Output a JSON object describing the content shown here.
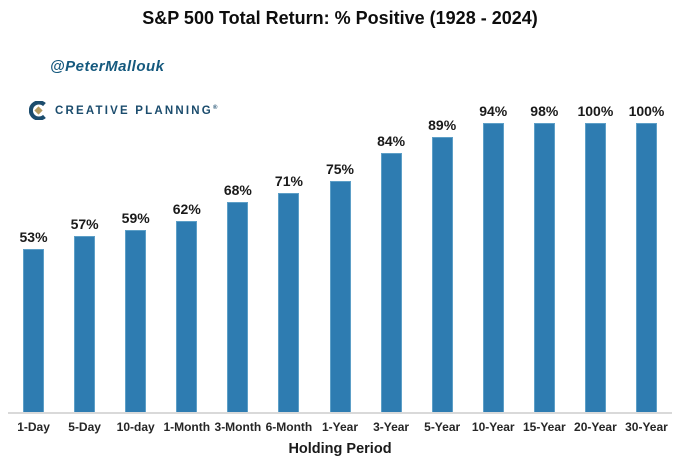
{
  "title": "S&P 500 Total Return: % Positive (1928 - 2024)",
  "attribution": "@PeterMallouk",
  "logo": {
    "text": "CREATIVE PLANNING",
    "trademark": "®",
    "mark_letter": "C",
    "mark_navy": "#1b4c6d",
    "mark_gold": "#b49a5e"
  },
  "chart_data": {
    "type": "bar",
    "title": "S&P 500 Total Return: % Positive (1928 - 2024)",
    "categories": [
      "1-Day",
      "5-Day",
      "10-day",
      "1-Month",
      "3-Month",
      "6-Month",
      "1-Year",
      "3-Year",
      "5-Year",
      "10-Year",
      "15-Year",
      "20-Year",
      "30-Year"
    ],
    "values": [
      53,
      57,
      59,
      62,
      68,
      71,
      75,
      84,
      89,
      94,
      98,
      100,
      100
    ],
    "labels": [
      "53%",
      "57%",
      "59%",
      "62%",
      "68%",
      "71%",
      "75%",
      "84%",
      "89%",
      "94%",
      "98%",
      "100%",
      "100%"
    ],
    "xlabel": "Holding Period",
    "ylabel": "",
    "ylim": [
      0,
      100
    ],
    "grid": false,
    "legend": false,
    "bar_color": "#2e7cb1",
    "bar_edge_color": "#5d9fc7"
  },
  "colors": {
    "background": "#ffffff",
    "title_text": "#0d0d0d",
    "attribution_text": "#15597e",
    "logo_navy": "#1b4c6d",
    "logo_gold": "#b49a5e",
    "axis_line": "#d9d9d9",
    "label_text": "#1a1a1a"
  }
}
